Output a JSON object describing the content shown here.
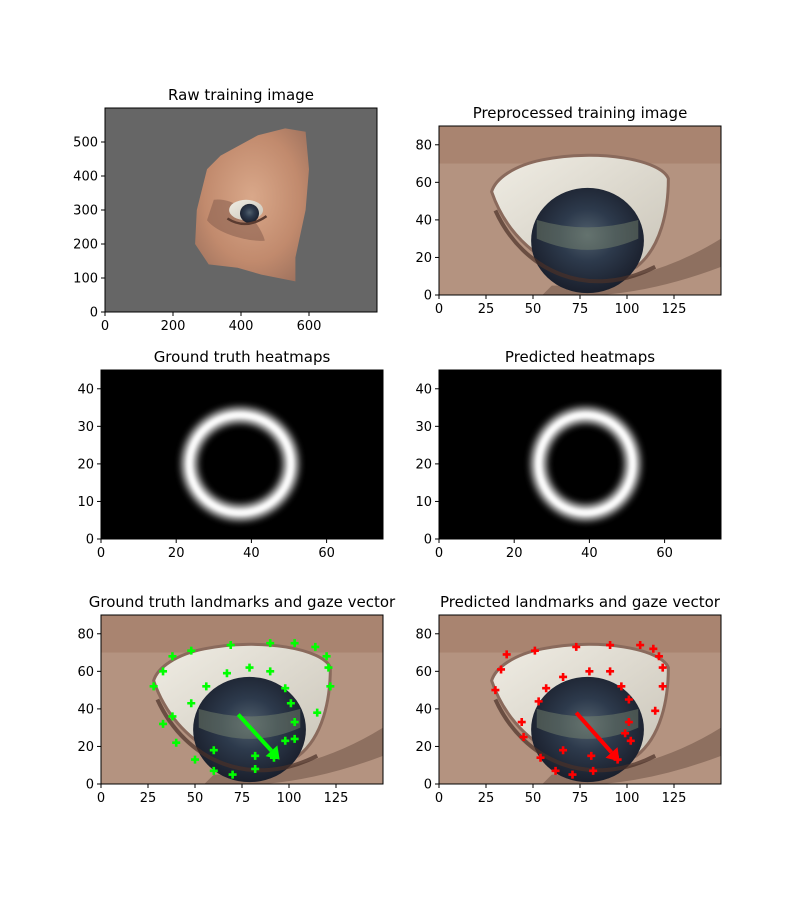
{
  "colors": {
    "gray_background": "#666666",
    "skin": "#c9967a",
    "sclera": "#e2dfd5",
    "iris": "#2c3850",
    "gt_marker": "#00ff00",
    "pred_marker": "#ff0000",
    "heatmap_ring": "#ffffff",
    "heatmap_background": "#000000"
  },
  "chart_data": [
    {
      "type": "image",
      "title": "Raw training image",
      "xlim": [
        0,
        800
      ],
      "ylim": [
        600,
        0
      ],
      "xticks": [
        0,
        200,
        400,
        600
      ],
      "yticks": [
        0,
        100,
        200,
        300,
        400,
        500
      ],
      "content": "face-crop-with-eye"
    },
    {
      "type": "image",
      "title": "Preprocessed training image",
      "xlim": [
        0,
        150
      ],
      "ylim": [
        90,
        0
      ],
      "xticks": [
        0,
        25,
        50,
        75,
        100,
        125
      ],
      "yticks": [
        0,
        20,
        40,
        60,
        80
      ],
      "content": "eye-closeup"
    },
    {
      "type": "heatmap",
      "title": "Ground truth heatmaps",
      "xlim": [
        0,
        75
      ],
      "ylim": [
        45,
        0
      ],
      "xticks": [
        0,
        20,
        40,
        60
      ],
      "yticks": [
        0,
        10,
        20,
        30,
        40
      ],
      "ring": {
        "cx": 37,
        "cy": 20,
        "rx": 13.5,
        "ry": 13
      }
    },
    {
      "type": "heatmap",
      "title": "Predicted heatmaps",
      "xlim": [
        0,
        75
      ],
      "ylim": [
        45,
        0
      ],
      "xticks": [
        0,
        20,
        40,
        60
      ],
      "yticks": [
        0,
        10,
        20,
        30,
        40
      ],
      "ring": {
        "cx": 39,
        "cy": 20,
        "rx": 12.5,
        "ry": 13
      }
    },
    {
      "type": "scatter",
      "title": "Ground truth landmarks and gaze vector",
      "xlim": [
        0,
        150
      ],
      "ylim": [
        90,
        0
      ],
      "xticks": [
        0,
        25,
        50,
        75,
        100,
        125
      ],
      "yticks": [
        0,
        20,
        40,
        60,
        80
      ],
      "marker_color": "#00ff00",
      "points": [
        [
          70,
          5
        ],
        [
          82,
          8
        ],
        [
          92,
          14
        ],
        [
          60,
          7
        ],
        [
          50,
          13
        ],
        [
          40,
          22
        ],
        [
          33,
          32
        ],
        [
          38,
          36
        ],
        [
          28,
          52
        ],
        [
          33,
          60
        ],
        [
          38,
          68
        ],
        [
          48,
          71
        ],
        [
          69,
          74
        ],
        [
          90,
          75
        ],
        [
          103,
          75
        ],
        [
          114,
          73
        ],
        [
          120,
          68
        ],
        [
          121,
          62
        ],
        [
          122,
          52
        ],
        [
          115,
          38
        ],
        [
          103,
          24
        ],
        [
          98,
          23
        ],
        [
          60,
          18
        ],
        [
          82,
          15
        ],
        [
          48,
          43
        ],
        [
          56,
          52
        ],
        [
          67,
          59
        ],
        [
          79,
          62
        ],
        [
          90,
          60
        ],
        [
          98,
          51
        ],
        [
          101,
          43
        ],
        [
          103,
          33
        ]
      ],
      "gaze": {
        "from": [
          73,
          37
        ],
        "to": [
          95,
          13
        ]
      }
    },
    {
      "type": "scatter",
      "title": "Predicted landmarks and gaze vector",
      "xlim": [
        0,
        150
      ],
      "ylim": [
        90,
        0
      ],
      "xticks": [
        0,
        25,
        50,
        75,
        100,
        125
      ],
      "yticks": [
        0,
        20,
        40,
        60,
        80
      ],
      "marker_color": "#ff0000",
      "points": [
        [
          71,
          5
        ],
        [
          82,
          7
        ],
        [
          95,
          13
        ],
        [
          62,
          7
        ],
        [
          54,
          14
        ],
        [
          45,
          25
        ],
        [
          30,
          50
        ],
        [
          33,
          61
        ],
        [
          36,
          69
        ],
        [
          51,
          71
        ],
        [
          73,
          73
        ],
        [
          91,
          74
        ],
        [
          107,
          74
        ],
        [
          114,
          72
        ],
        [
          117,
          68
        ],
        [
          119,
          62
        ],
        [
          119,
          52
        ],
        [
          115,
          39
        ],
        [
          102,
          23
        ],
        [
          99,
          27
        ],
        [
          66,
          18
        ],
        [
          81,
          15
        ],
        [
          44,
          33
        ],
        [
          53,
          44
        ],
        [
          57,
          51
        ],
        [
          66,
          57
        ],
        [
          80,
          60
        ],
        [
          91,
          60
        ],
        [
          97,
          52
        ],
        [
          101,
          45
        ],
        [
          101,
          33
        ]
      ],
      "gaze": {
        "from": [
          73,
          38
        ],
        "to": [
          96,
          12
        ]
      }
    }
  ]
}
